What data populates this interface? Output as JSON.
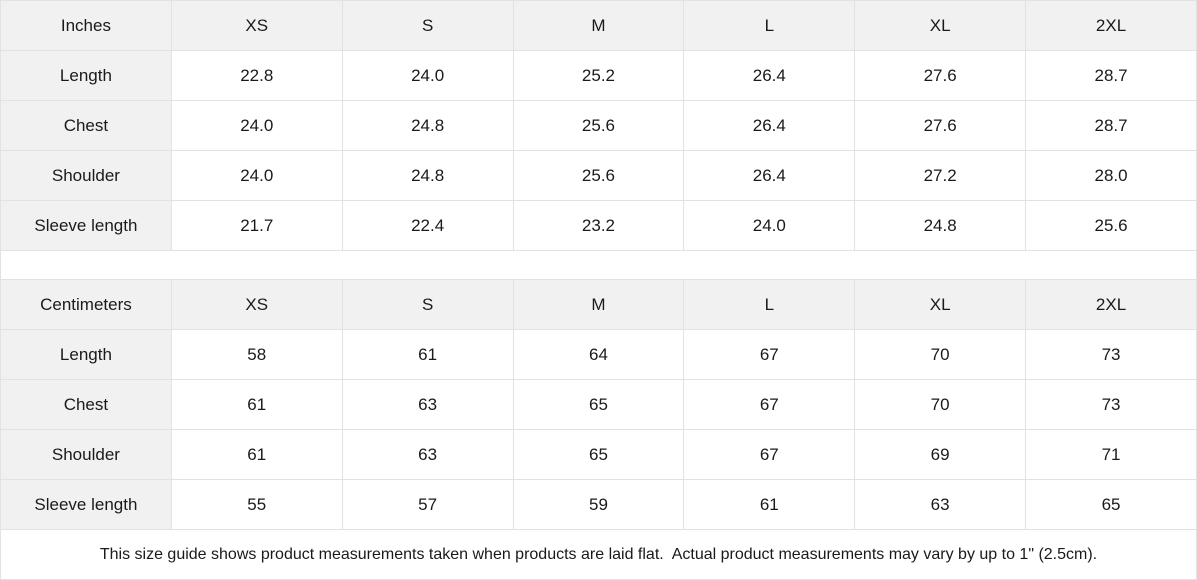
{
  "size_guide": {
    "columns": [
      "XS",
      "S",
      "M",
      "L",
      "XL",
      "2XL"
    ],
    "tables": [
      {
        "unit_label": "Inches",
        "rows": [
          {
            "label": "Length",
            "values": [
              "22.8",
              "24.0",
              "25.2",
              "26.4",
              "27.6",
              "28.7"
            ]
          },
          {
            "label": "Chest",
            "values": [
              "24.0",
              "24.8",
              "25.6",
              "26.4",
              "27.6",
              "28.7"
            ]
          },
          {
            "label": "Shoulder",
            "values": [
              "24.0",
              "24.8",
              "25.6",
              "26.4",
              "27.2",
              "28.0"
            ]
          },
          {
            "label": "Sleeve length",
            "values": [
              "21.7",
              "22.4",
              "23.2",
              "24.0",
              "24.8",
              "25.6"
            ]
          }
        ]
      },
      {
        "unit_label": "Centimeters",
        "rows": [
          {
            "label": "Length",
            "values": [
              "58",
              "61",
              "64",
              "67",
              "70",
              "73"
            ]
          },
          {
            "label": "Chest",
            "values": [
              "61",
              "63",
              "65",
              "67",
              "70",
              "73"
            ]
          },
          {
            "label": "Shoulder",
            "values": [
              "61",
              "63",
              "65",
              "67",
              "69",
              "71"
            ]
          },
          {
            "label": "Sleeve length",
            "values": [
              "55",
              "57",
              "59",
              "61",
              "63",
              "65"
            ]
          }
        ]
      }
    ],
    "footnote": "This size guide shows product measurements taken when products are laid flat.  Actual product measurements may vary by up to 1\" (2.5cm).",
    "colors": {
      "header_bg": "#f1f1f1",
      "border": "#e2e2e2",
      "text": "#1a1a1a"
    }
  }
}
